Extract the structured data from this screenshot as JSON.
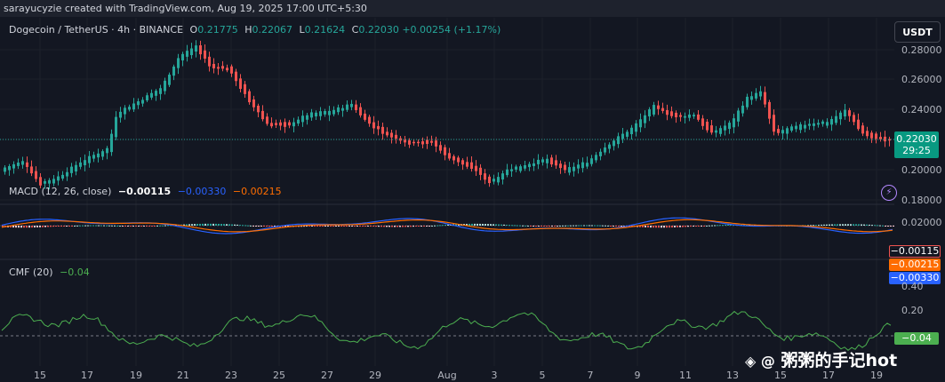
{
  "header": {
    "credit": "sarayucyzie created with TradingView.com, Aug 19, 2025 17:00 UTC+5:30"
  },
  "legend": {
    "symbol": "Dogecoin / TetherUS · 4h · BINANCE",
    "o_label": "O",
    "o": "0.21775",
    "h_label": "H",
    "h": "0.22067",
    "l_label": "L",
    "l": "0.21624",
    "c_label": "C",
    "c": "0.22030",
    "change": "+0.00254 (+1.17%)"
  },
  "currency_button": "USDT",
  "price_axis": [
    "0.28000",
    "0.26000",
    "0.24000",
    "0.20000",
    "0.18000"
  ],
  "last_price": {
    "value": "0.22030",
    "countdown": "29:25"
  },
  "macd": {
    "title": "MACD (12, 26, close)",
    "v_hist": "−0.00115",
    "v_macd": "−0.00330",
    "v_signal": "−0.00215",
    "axis": [
      "0.02000"
    ],
    "tags": {
      "hist": "−0.00115",
      "signal": "−0.00215",
      "macd": "−0.00330"
    }
  },
  "cmf": {
    "title": "CMF (20)",
    "value": "−0.04",
    "axis": [
      "0.40",
      "0.20"
    ],
    "tag": "−0.04"
  },
  "time_axis": [
    "15",
    "17",
    "19",
    "21",
    "23",
    "25",
    "27",
    "29",
    "Aug",
    "3",
    "5",
    "7",
    "9",
    "11",
    "13",
    "15",
    "17",
    "19"
  ],
  "watermark": "粥粥的手记hot",
  "colors": {
    "up": "#26a69a",
    "down": "#ef5350",
    "macd": "#2962ff",
    "signal": "#ff6d00",
    "cmf": "#4caf50",
    "bg": "#131722"
  }
}
